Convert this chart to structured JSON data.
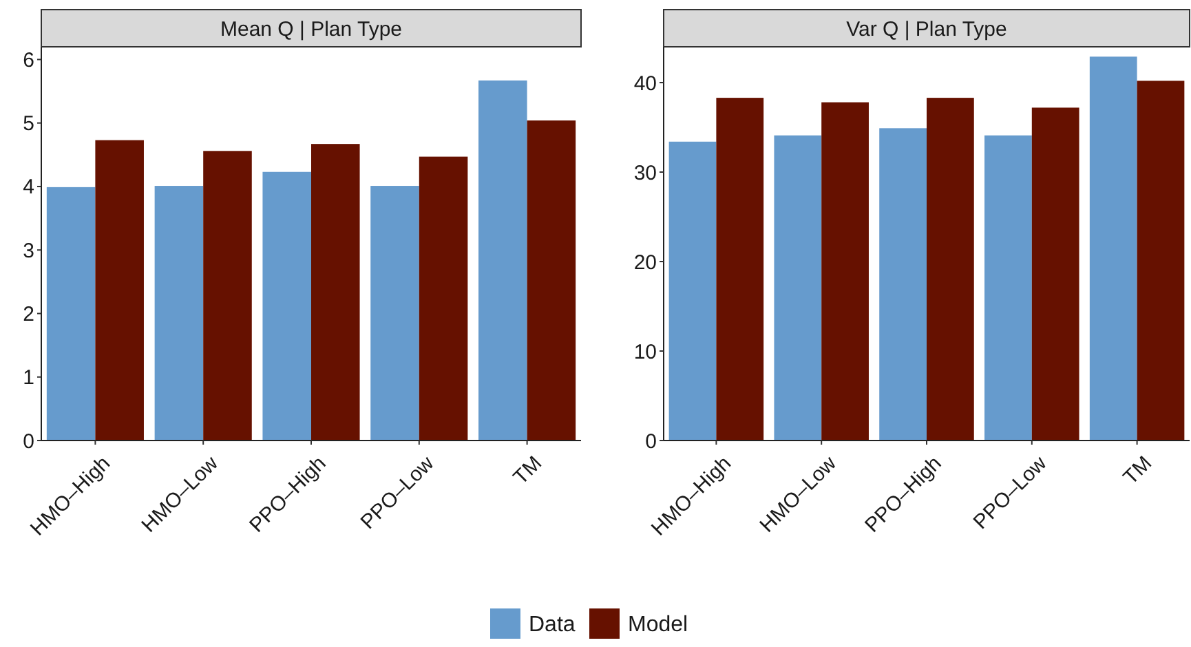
{
  "chart_data": [
    {
      "type": "bar",
      "title": "Mean Q | Plan Type",
      "categories": [
        "HMO–High",
        "HMO–Low",
        "PPO–High",
        "PPO–Low",
        "TM"
      ],
      "series": [
        {
          "name": "Data",
          "color": "#669bcd",
          "values": [
            3.99,
            4.01,
            4.23,
            4.01,
            5.67
          ]
        },
        {
          "name": "Model",
          "color": "#661100",
          "values": [
            4.73,
            4.56,
            4.67,
            4.47,
            5.04
          ]
        }
      ],
      "ylim": [
        0,
        6.2
      ],
      "yticks": [
        0,
        1,
        2,
        3,
        4,
        5,
        6
      ],
      "grid": false,
      "legend": "bottom"
    },
    {
      "type": "bar",
      "title": "Var Q | Plan Type",
      "categories": [
        "HMO–High",
        "HMO–Low",
        "PPO–High",
        "PPO–Low",
        "TM"
      ],
      "series": [
        {
          "color": "#669bcd",
          "values": [
            33.4,
            34.1,
            34.9,
            34.1,
            42.9
          ]
        },
        {
          "color": "#661100",
          "values": [
            38.3,
            37.8,
            38.3,
            37.2,
            40.2
          ]
        }
      ],
      "ylim": [
        0,
        44
      ],
      "yticks": [
        0,
        10,
        20,
        30,
        40
      ],
      "grid": false
    }
  ]
}
